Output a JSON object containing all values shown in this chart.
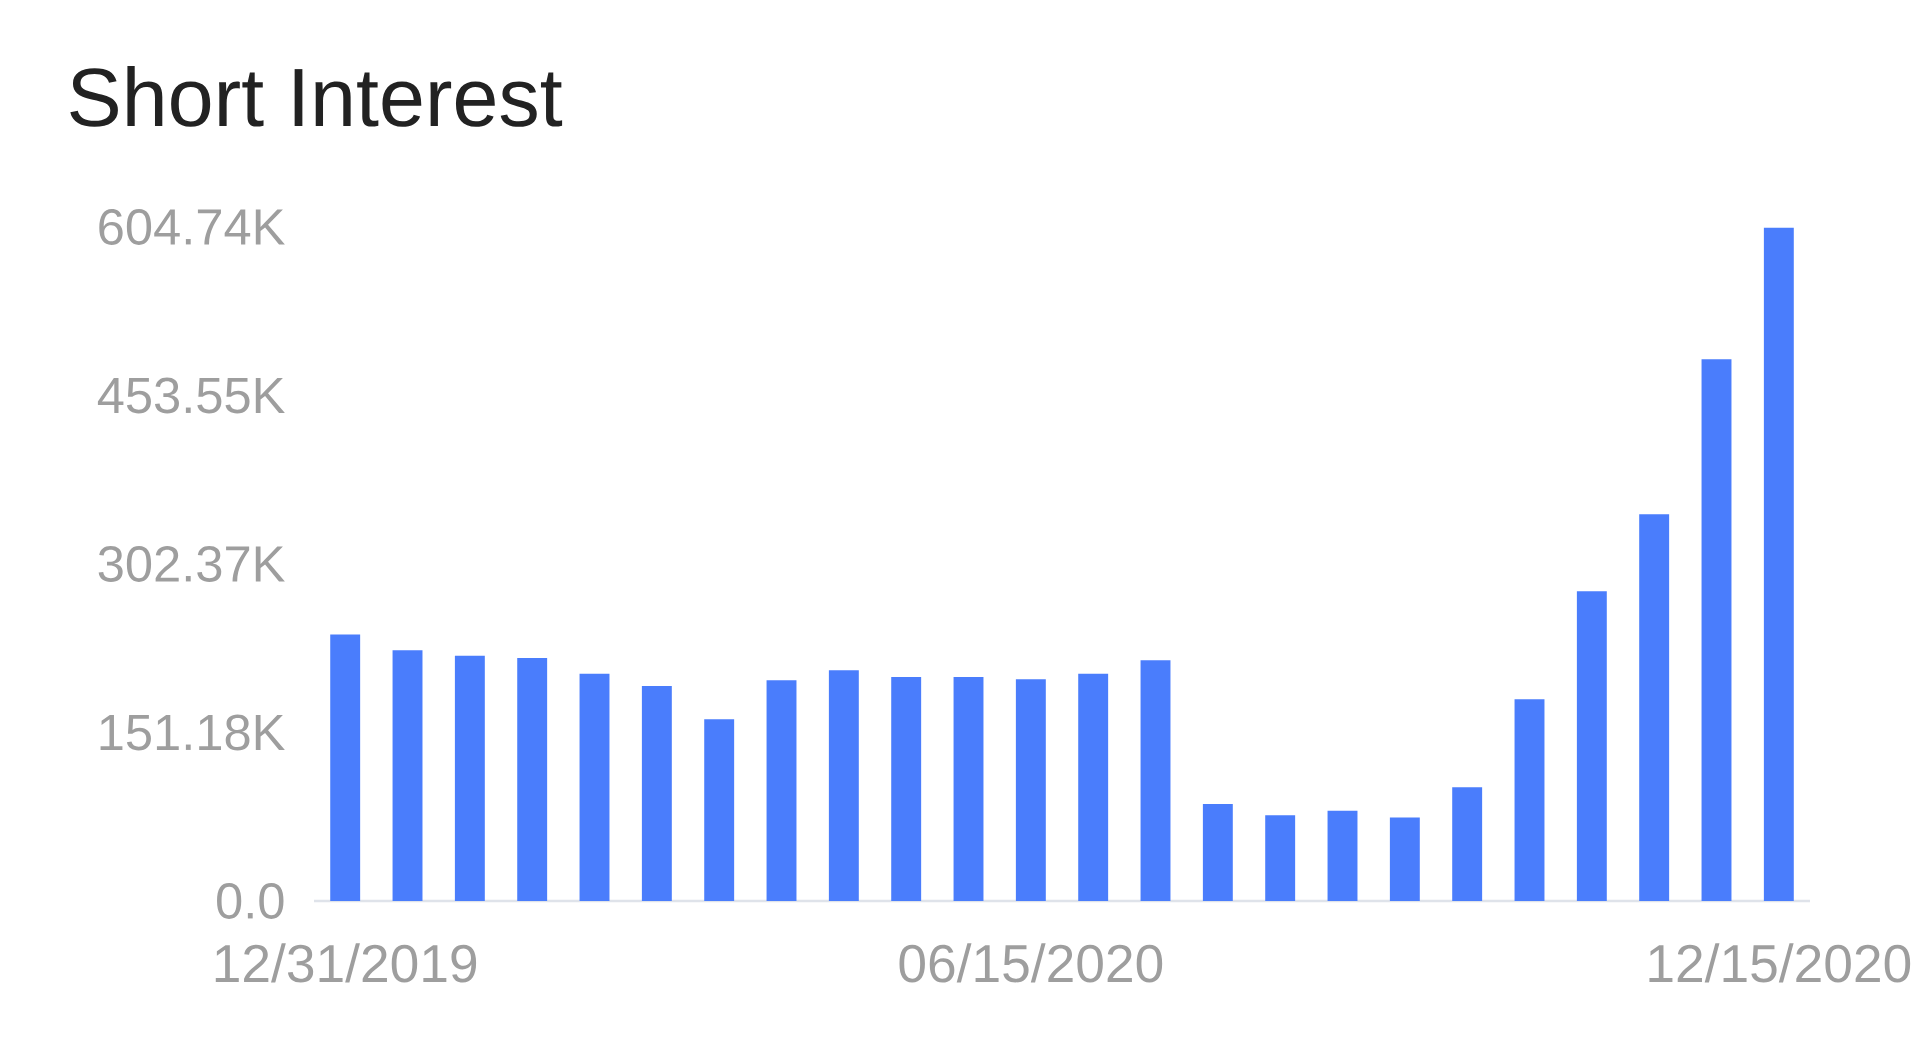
{
  "chart_data": {
    "type": "bar",
    "title": "Short Interest",
    "categories": [
      "12/31/2019",
      null,
      null,
      null,
      null,
      null,
      null,
      null,
      null,
      null,
      null,
      "06/15/2020",
      null,
      null,
      null,
      null,
      null,
      null,
      null,
      null,
      null,
      null,
      null,
      "12/15/2020"
    ],
    "values": [
      239000,
      225000,
      220000,
      218000,
      204000,
      193000,
      163000,
      198000,
      207000,
      201000,
      201000,
      199000,
      204000,
      216000,
      87000,
      77000,
      81000,
      75000,
      102000,
      181000,
      278000,
      347000,
      486000,
      604000
    ],
    "color": "#4a7dfc",
    "ylim": [
      0,
      604740
    ],
    "yticks": [
      {
        "value": 0,
        "label": "0.0"
      },
      {
        "value": 151185,
        "label": "151.18K"
      },
      {
        "value": 302370,
        "label": "302.37K"
      },
      {
        "value": 453555,
        "label": "453.55K"
      },
      {
        "value": 604740,
        "label": "604.74K"
      }
    ]
  }
}
